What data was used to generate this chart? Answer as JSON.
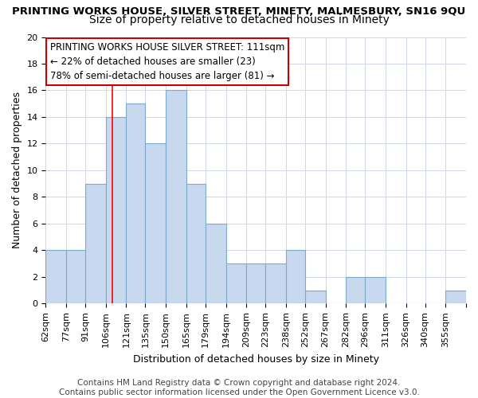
{
  "title": "PRINTING WORKS HOUSE, SILVER STREET, MINETY, MALMESBURY, SN16 9QU",
  "subtitle": "Size of property relative to detached houses in Minety",
  "xlabel": "Distribution of detached houses by size in Minety",
  "ylabel": "Number of detached properties",
  "categories": [
    "62sqm",
    "77sqm",
    "91sqm",
    "106sqm",
    "121sqm",
    "135sqm",
    "150sqm",
    "165sqm",
    "179sqm",
    "194sqm",
    "209sqm",
    "223sqm",
    "238sqm",
    "252sqm",
    "267sqm",
    "282sqm",
    "296sqm",
    "311sqm",
    "326sqm",
    "340sqm",
    "355sqm"
  ],
  "values": [
    4,
    4,
    9,
    14,
    15,
    12,
    16,
    9,
    6,
    3,
    3,
    3,
    4,
    1,
    0,
    2,
    2,
    0,
    0,
    0,
    1
  ],
  "bar_color": "#c8d8ee",
  "bar_edge_color": "#7aabcc",
  "grid_color": "#d0d8e8",
  "background_color": "#ffffff",
  "ylim": [
    0,
    20
  ],
  "yticks": [
    0,
    2,
    4,
    6,
    8,
    10,
    12,
    14,
    16,
    18,
    20
  ],
  "red_line_x": 111,
  "annotation_text": "PRINTING WORKS HOUSE SILVER STREET: 111sqm\n← 22% of detached houses are smaller (23)\n78% of semi-detached houses are larger (81) →",
  "annotation_box_color": "#ffffff",
  "annotation_box_edge_color": "#cc0000",
  "footer_text": "Contains HM Land Registry data © Crown copyright and database right 2024.\nContains public sector information licensed under the Open Government Licence v3.0.",
  "title_fontsize": 9.5,
  "subtitle_fontsize": 10,
  "axis_label_fontsize": 9,
  "tick_fontsize": 8,
  "annotation_fontsize": 8.5,
  "footer_fontsize": 7.5
}
